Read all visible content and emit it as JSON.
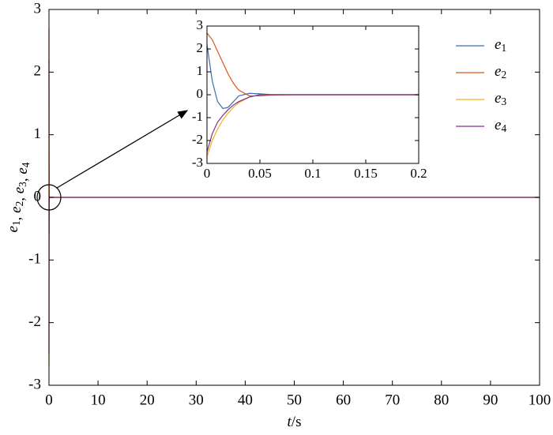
{
  "chart_data": [
    {
      "type": "line",
      "xlabel": "t/s",
      "ylabel": "e1, e2, e3, e4",
      "x": [
        0,
        0.02,
        0.05,
        0.1,
        100
      ],
      "series": [
        {
          "name": "e1",
          "color": "#3a6fb0",
          "values": [
            2.2,
            -0.55,
            0.04,
            0,
            0
          ]
        },
        {
          "name": "e2",
          "color": "#d95319",
          "values": [
            2.7,
            0.9,
            -0.05,
            0,
            0
          ]
        },
        {
          "name": "e3",
          "color": "#edb120",
          "values": [
            -2.7,
            -0.8,
            0,
            0,
            0
          ]
        },
        {
          "name": "e4",
          "color": "#7e2f8e",
          "values": [
            -2.5,
            -0.65,
            0,
            0,
            0
          ]
        }
      ],
      "xlim": [
        0,
        100
      ],
      "xticks": [
        0,
        10,
        20,
        30,
        40,
        50,
        60,
        70,
        80,
        90,
        100
      ],
      "ylim": [
        -3,
        3
      ],
      "yticks": [
        -3,
        -2,
        -1,
        0,
        1,
        2,
        3
      ],
      "grid": false,
      "legend": "right"
    },
    {
      "type": "line",
      "x": [
        0,
        0.005,
        0.01,
        0.015,
        0.02,
        0.025,
        0.03,
        0.04,
        0.05,
        0.06,
        0.08,
        0.1,
        0.2
      ],
      "series": [
        {
          "color": "#3a6fb0",
          "values": [
            2.2,
            0.6,
            -0.3,
            -0.6,
            -0.55,
            -0.3,
            -0.05,
            0.06,
            0.04,
            0.01,
            0,
            0,
            0
          ]
        },
        {
          "color": "#d95319",
          "values": [
            2.7,
            2.4,
            1.9,
            1.4,
            0.9,
            0.5,
            0.2,
            -0.05,
            -0.05,
            -0.02,
            0,
            0,
            0
          ]
        },
        {
          "color": "#edb120",
          "values": [
            -2.7,
            -2.0,
            -1.5,
            -1.1,
            -0.8,
            -0.55,
            -0.35,
            -0.1,
            0,
            0,
            0,
            0,
            0
          ]
        },
        {
          "color": "#7e2f8e",
          "values": [
            -2.5,
            -1.7,
            -1.2,
            -0.9,
            -0.65,
            -0.45,
            -0.3,
            -0.1,
            0,
            0,
            0,
            0,
            0
          ]
        }
      ],
      "xlim": [
        0,
        0.2
      ],
      "xticks": [
        0,
        0.05,
        0.1,
        0.15,
        0.2
      ],
      "ylim": [
        -3,
        3
      ],
      "yticks": [
        -3,
        -2,
        -1,
        0,
        1,
        2,
        3
      ],
      "grid": false
    }
  ]
}
